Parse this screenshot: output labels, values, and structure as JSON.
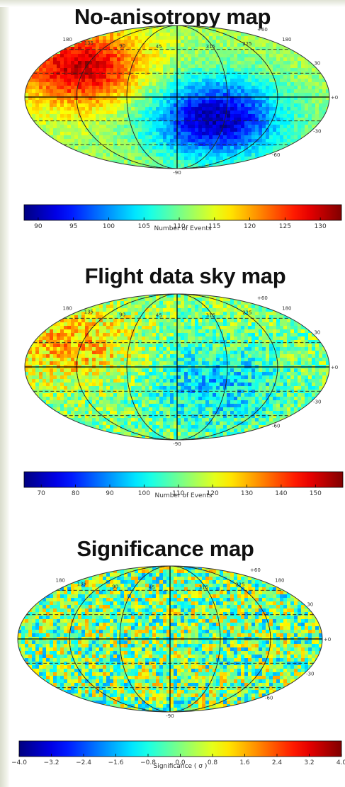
{
  "panels": [
    {
      "title": "No-anisotropy map",
      "map_labels": {
        "top": [
          "+60",
          "180",
          "30"
        ],
        "left_upper": [
          "180",
          "135",
          "90",
          "45"
        ],
        "right_upper": [
          "315",
          "225"
        ],
        "equator_right": "+0",
        "lower_right": [
          "-30",
          "-60"
        ],
        "bottom": "-90"
      },
      "colorbar": {
        "ticks": [
          "90",
          "95",
          "100",
          "105",
          "110",
          "115",
          "120",
          "125",
          "130"
        ],
        "label": "Number of Events"
      }
    },
    {
      "title": "Flight data sky map",
      "map_labels": {
        "top": [
          "+60",
          "180",
          "30"
        ],
        "left_upper": [
          "180",
          "135",
          "90",
          "45"
        ],
        "right_upper": [
          "315",
          "225"
        ],
        "equator_right": "+0",
        "lower_right": [
          "-30",
          "-60"
        ],
        "bottom": "-90"
      },
      "colorbar": {
        "ticks": [
          "70",
          "80",
          "90",
          "100",
          "110",
          "120",
          "130",
          "140",
          "150"
        ],
        "label": "Number of Events"
      }
    },
    {
      "title": "Significance map",
      "map_labels": {
        "top": [
          "+60",
          "180",
          "30"
        ],
        "left_upper": [
          "180",
          "135",
          "90",
          "45"
        ],
        "right_upper": [
          "315",
          "225"
        ],
        "equator_right": "+0",
        "lower_right": [
          "-30",
          "-60"
        ],
        "bottom": "-90"
      },
      "colorbar": {
        "ticks": [
          "−4.0",
          "−3.2",
          "−2.4",
          "−1.6",
          "−0.8",
          "0.0",
          "0.8",
          "1.6",
          "2.4",
          "3.2",
          "4.0"
        ],
        "label": "Significance ( σ )"
      }
    }
  ],
  "chart_data": [
    {
      "type": "heatmap",
      "projection": "mollweide",
      "title": "No-anisotropy map",
      "colorbar_label": "Number of Events",
      "colorbar_range": [
        88,
        133
      ],
      "colorbar_ticks": [
        90,
        95,
        100,
        105,
        110,
        115,
        120,
        125,
        130
      ],
      "colormap": "jet",
      "features": [
        {
          "description": "hot spot",
          "lon_center": 135,
          "lat_center": 40,
          "value": 130
        },
        {
          "description": "cold spot",
          "lon_center": 315,
          "lat_center": -25,
          "value": 90
        }
      ],
      "background_value": 112,
      "grid": true
    },
    {
      "type": "heatmap",
      "projection": "mollweide",
      "title": "Flight data sky map",
      "colorbar_label": "Number of Events",
      "colorbar_range": [
        65,
        158
      ],
      "colorbar_ticks": [
        70,
        80,
        90,
        100,
        110,
        120,
        130,
        140,
        150
      ],
      "colormap": "jet",
      "features": [
        {
          "description": "warm region",
          "lon_center": 135,
          "lat_center": 30,
          "value": 130
        },
        {
          "description": "cool region",
          "lon_center": 315,
          "lat_center": -20,
          "value": 95
        }
      ],
      "background_value": 112,
      "grid": true
    },
    {
      "type": "heatmap",
      "projection": "mollweide",
      "title": "Significance map",
      "colorbar_label": "Significance ( σ )",
      "colorbar_range": [
        -4.0,
        4.0
      ],
      "colorbar_ticks": [
        -4.0,
        -3.2,
        -2.4,
        -1.6,
        -0.8,
        0.0,
        0.8,
        1.6,
        2.4,
        3.2,
        4.0
      ],
      "colormap": "jet",
      "features": [],
      "background_value": 0.0,
      "grid": true
    }
  ]
}
